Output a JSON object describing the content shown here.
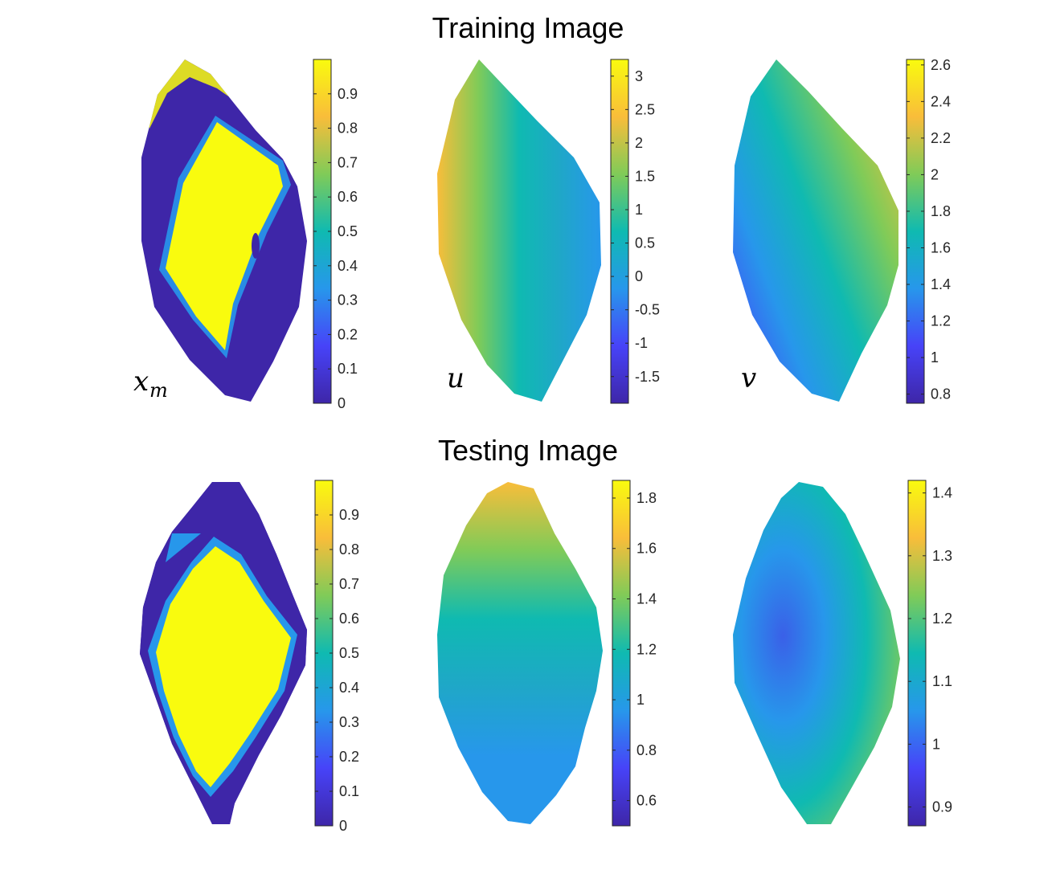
{
  "figure": {
    "colormap": "parula",
    "colormap_stops": [
      "#3e26a8",
      "#4743f8",
      "#2797eb",
      "#0fbab1",
      "#80cb58",
      "#f9bd3a",
      "#f9fb0e"
    ],
    "background": "#ffffff"
  },
  "chart_data": [
    {
      "type": "heatmap",
      "section": "Training Image",
      "panel_label": "x",
      "panel_label_sub": "m",
      "colorbar": {
        "range": [
          0,
          1.0
        ],
        "ticks": [
          0,
          0.1,
          0.2,
          0.3,
          0.4,
          0.5,
          0.6,
          0.7,
          0.8,
          0.9
        ]
      }
    },
    {
      "type": "heatmap",
      "section": "Training Image",
      "panel_label": "u",
      "panel_label_sub": "",
      "colorbar": {
        "range": [
          -1.9,
          3.25
        ],
        "ticks": [
          -1.5,
          -1,
          -0.5,
          0,
          0.5,
          1,
          1.5,
          2,
          2.5,
          3
        ]
      }
    },
    {
      "type": "heatmap",
      "section": "Training Image",
      "panel_label": "v",
      "panel_label_sub": "",
      "colorbar": {
        "range": [
          0.75,
          2.63
        ],
        "ticks": [
          0.8,
          1,
          1.2,
          1.4,
          1.6,
          1.8,
          2,
          2.2,
          2.4,
          2.6
        ]
      }
    },
    {
      "type": "heatmap",
      "section": "Testing Image",
      "panel_label": "",
      "panel_label_sub": "",
      "colorbar": {
        "range": [
          0,
          1.0
        ],
        "ticks": [
          0,
          0.1,
          0.2,
          0.3,
          0.4,
          0.5,
          0.6,
          0.7,
          0.8,
          0.9
        ]
      }
    },
    {
      "type": "heatmap",
      "section": "Testing Image",
      "panel_label": "",
      "panel_label_sub": "",
      "colorbar": {
        "range": [
          0.5,
          1.87
        ],
        "ticks": [
          0.6,
          0.8,
          1,
          1.2,
          1.4,
          1.6,
          1.8
        ]
      }
    },
    {
      "type": "heatmap",
      "section": "Testing Image",
      "panel_label": "",
      "panel_label_sub": "",
      "colorbar": {
        "range": [
          0.87,
          1.42
        ],
        "ticks": [
          0.9,
          1,
          1.1,
          1.2,
          1.3,
          1.4
        ]
      }
    }
  ],
  "titles": {
    "training": "Training Image",
    "testing": "Testing Image"
  }
}
